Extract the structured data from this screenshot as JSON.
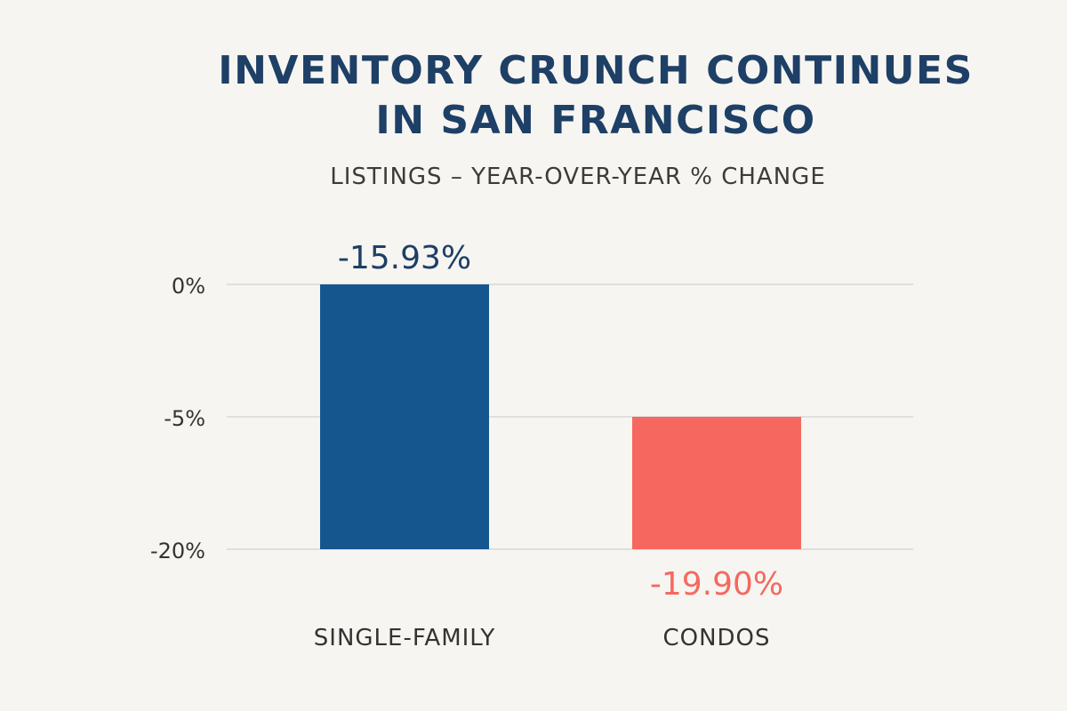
{
  "title_lines": [
    "INVENTORY CRUNCH CONTINUES",
    "IN SAN FRANCISCO"
  ],
  "subtitle": "LISTINGS – YEAR-OVER-YEAR % CHANGE",
  "colors": {
    "background": "#f6f5f1",
    "title": "#1e3f66",
    "single_family": "#15568f",
    "condos": "#f6685f",
    "gridline": "#d2d2d2",
    "axis_text": "#333333"
  },
  "chart_data": {
    "type": "bar",
    "title": "INVENTORY CRUNCH CONTINUES IN SAN FRANCISCO",
    "subtitle": "LISTINGS – YEAR-OVER-YEAR % CHANGE",
    "categories": [
      "SINGLE-FAMILY",
      "CONDOS"
    ],
    "values": [
      -15.93,
      -19.9
    ],
    "data_labels": [
      "-15.93%",
      "-19.90%"
    ],
    "y_ticks": [
      {
        "label": "0%",
        "level": 0
      },
      {
        "label": "-5%",
        "level": 1
      },
      {
        "label": "-20%",
        "level": 2
      }
    ],
    "bars": [
      {
        "category": "SINGLE-FAMILY",
        "label": "-15.93%",
        "from_level": 0,
        "to_level": 2,
        "color": "#15568f",
        "label_position": "above"
      },
      {
        "category": "CONDOS",
        "label": "-19.90%",
        "from_level": 1,
        "to_level": 2,
        "color": "#f6685f",
        "label_position": "below"
      }
    ],
    "xlabel": "",
    "ylabel": "",
    "grid": true,
    "legend": "none"
  }
}
